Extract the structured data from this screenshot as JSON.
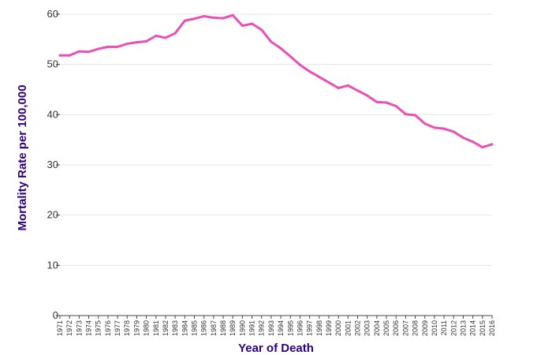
{
  "chart_data": {
    "type": "line",
    "title": "",
    "xlabel": "Year of Death",
    "ylabel": "Mortality Rate per 100,000",
    "ylim": [
      0,
      60
    ],
    "y_ticks": [
      0,
      10,
      20,
      30,
      40,
      50,
      60
    ],
    "grid": "horizontal",
    "categories": [
      "1971",
      "1972",
      "1973",
      "1974",
      "1975",
      "1976",
      "1977",
      "1978",
      "1979",
      "1980",
      "1981",
      "1982",
      "1983",
      "1984",
      "1985",
      "1986",
      "1987",
      "1988",
      "1989",
      "1990",
      "1991",
      "1992",
      "1993",
      "1994",
      "1995",
      "1996",
      "1997",
      "1998",
      "1999",
      "2000",
      "2001",
      "2002",
      "2003",
      "2004",
      "2005",
      "2006",
      "2007",
      "2008",
      "2009",
      "2010",
      "2011",
      "2012",
      "2013",
      "2014",
      "2015",
      "2016"
    ],
    "series": [
      {
        "color": "#e94fb7",
        "values": [
          51.8,
          51.8,
          52.6,
          52.5,
          53.1,
          53.5,
          53.5,
          54.1,
          54.4,
          54.6,
          55.7,
          55.3,
          56.2,
          58.7,
          59.1,
          59.6,
          59.3,
          59.2,
          59.8,
          57.7,
          58.1,
          56.9,
          54.5,
          53.2,
          51.6,
          49.9,
          48.6,
          47.5,
          46.4,
          45.3,
          45.8,
          44.8,
          43.8,
          42.5,
          42.4,
          41.7,
          40.1,
          39.9,
          38.2,
          37.4,
          37.2,
          36.6,
          35.4,
          34.6,
          33.5,
          34.1
        ]
      }
    ]
  }
}
